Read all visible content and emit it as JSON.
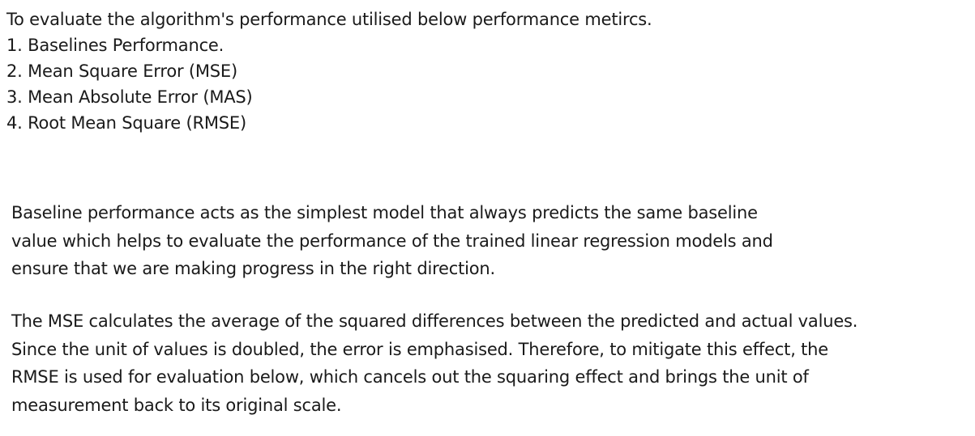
{
  "intro": {
    "lead": "To evaluate the algorithm's performance utilised below performance metircs.",
    "metrics": [
      "1. Baselines Performance.",
      "2. Mean Square Error (MSE)",
      "3. Mean Absolute Error (MAS)",
      "4. Root Mean Square (RMSE)"
    ]
  },
  "paragraphs": [
    {
      "lines": [
        "Baseline performance acts as the simplest model that always predicts the same baseline",
        "value which helps to evaluate the performance of the trained linear regression models and",
        "ensure that we are making progress in the right direction."
      ]
    },
    {
      "lines": [
        "The MSE calculates the average of the squared differences between the predicted and actual values.",
        "Since the unit of values is doubled, the error is emphasised. Therefore, to mitigate this effect, the",
        "RMSE is used for evaluation below, which cancels out the squaring effect and brings the unit of",
        "measurement back to its original scale."
      ]
    }
  ]
}
